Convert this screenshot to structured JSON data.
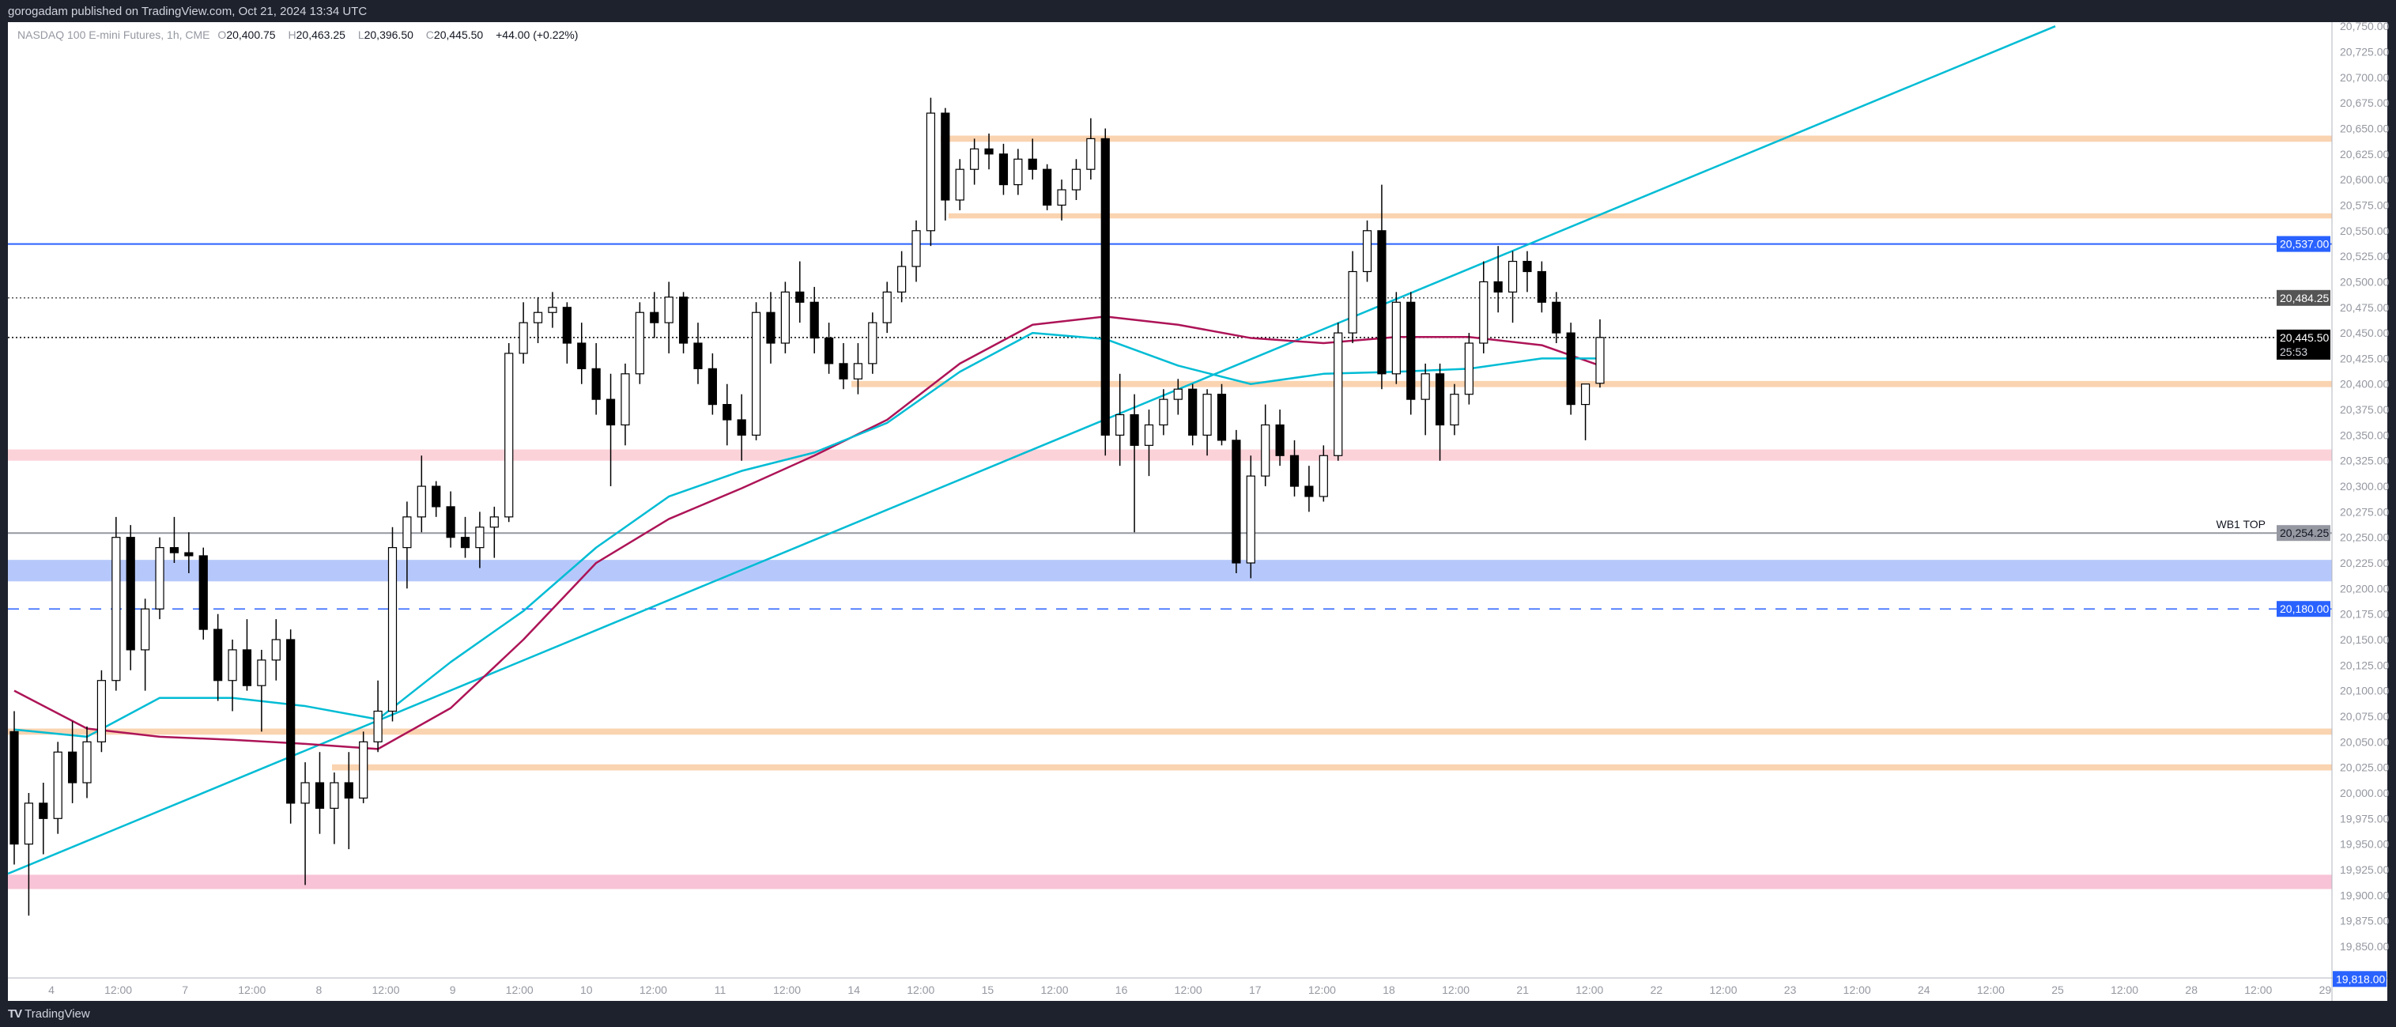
{
  "header": {
    "published": "gorogadam published on TradingView.com, Oct 21, 2024 13:34 UTC"
  },
  "legend": {
    "symbol": "NASDAQ 100 E-mini Futures, 1h, CME",
    "o_label": "O",
    "o": "20,400.75",
    "h_label": "H",
    "h": "20,463.25",
    "l_label": "L",
    "l": "20,396.50",
    "c_label": "C",
    "c": "20,445.50",
    "change": "+44.00 (+0.22%)"
  },
  "footer": {
    "brand": "TradingView",
    "logo_icon": "tradingview-logo-icon"
  },
  "chart_data": {
    "type": "candlestick",
    "ylim": [
      19819,
      20754
    ],
    "grid": false,
    "colors": {
      "up_body": "#ffffff",
      "down_body": "#000000",
      "wick": "#000000",
      "ma_fast": "#00bcd4",
      "ma_slow": "#ad1457",
      "trendline": "#00bcd4"
    },
    "y_ticks": [
      "20,750.00",
      "20,725.00",
      "20,700.00",
      "20,675.00",
      "20,650.00",
      "20,625.00",
      "20,600.00",
      "20,575.00",
      "20,550.00",
      "20,525.00",
      "20,500.00",
      "20,475.00",
      "20,450.00",
      "20,425.00",
      "20,400.00",
      "20,375.00",
      "20,350.00",
      "20,325.00",
      "20,300.00",
      "20,275.00",
      "20,250.00",
      "20,225.00",
      "20,200.00",
      "20,175.00",
      "20,150.00",
      "20,125.00",
      "20,100.00",
      "20,075.00",
      "20,050.00",
      "20,025.00",
      "20,000.00",
      "19,975.00",
      "19,950.00",
      "19,925.00",
      "19,900.00",
      "19,875.00",
      "19,850.00"
    ],
    "x_ticks": [
      "4",
      "12:00",
      "7",
      "12:00",
      "8",
      "12:00",
      "9",
      "12:00",
      "10",
      "12:00",
      "11",
      "12:00",
      "14",
      "12:00",
      "15",
      "12:00",
      "16",
      "12:00",
      "17",
      "12:00",
      "18",
      "12:00",
      "21",
      "12:00",
      "22",
      "12:00",
      "23",
      "12:00",
      "24",
      "12:00",
      "25",
      "12:00",
      "28",
      "12:00",
      "29"
    ],
    "candles": [
      [
        20060,
        20080,
        19930,
        19950
      ],
      [
        19950,
        20000,
        19880,
        19990
      ],
      [
        19990,
        20010,
        19940,
        19975
      ],
      [
        19975,
        20050,
        19960,
        20040
      ],
      [
        20040,
        20070,
        19990,
        20010
      ],
      [
        20010,
        20065,
        19995,
        20050
      ],
      [
        20050,
        20120,
        20040,
        20110
      ],
      [
        20110,
        20270,
        20100,
        20250
      ],
      [
        20250,
        20262,
        20120,
        20140
      ],
      [
        20140,
        20190,
        20100,
        20180
      ],
      [
        20180,
        20250,
        20170,
        20240
      ],
      [
        20240,
        20270,
        20225,
        20235
      ],
      [
        20235,
        20255,
        20215,
        20232
      ],
      [
        20232,
        20240,
        20150,
        20160
      ],
      [
        20160,
        20175,
        20090,
        20110
      ],
      [
        20110,
        20150,
        20080,
        20140
      ],
      [
        20140,
        20170,
        20100,
        20105
      ],
      [
        20105,
        20140,
        20060,
        20130
      ],
      [
        20130,
        20170,
        20110,
        20150
      ],
      [
        20150,
        20160,
        19970,
        19990
      ],
      [
        19990,
        20030,
        19910,
        20010
      ],
      [
        20010,
        20040,
        19960,
        19985
      ],
      [
        19985,
        20020,
        19950,
        20010
      ],
      [
        20010,
        20040,
        19945,
        19995
      ],
      [
        19995,
        20060,
        19990,
        20050
      ],
      [
        20050,
        20110,
        20040,
        20080
      ],
      [
        20080,
        20260,
        20070,
        20240
      ],
      [
        20240,
        20285,
        20200,
        20270
      ],
      [
        20270,
        20330,
        20255,
        20300
      ],
      [
        20300,
        20305,
        20270,
        20280
      ],
      [
        20280,
        20295,
        20240,
        20250
      ],
      [
        20250,
        20270,
        20230,
        20240
      ],
      [
        20240,
        20275,
        20220,
        20260
      ],
      [
        20260,
        20280,
        20230,
        20270
      ],
      [
        20270,
        20440,
        20265,
        20430
      ],
      [
        20430,
        20480,
        20420,
        20460
      ],
      [
        20460,
        20485,
        20440,
        20470
      ],
      [
        20470,
        20490,
        20455,
        20475
      ],
      [
        20475,
        20480,
        20420,
        20440
      ],
      [
        20440,
        20460,
        20400,
        20415
      ],
      [
        20415,
        20440,
        20370,
        20385
      ],
      [
        20385,
        20410,
        20300,
        20360
      ],
      [
        20360,
        20420,
        20340,
        20410
      ],
      [
        20410,
        20480,
        20400,
        20470
      ],
      [
        20470,
        20490,
        20445,
        20460
      ],
      [
        20460,
        20500,
        20430,
        20485
      ],
      [
        20485,
        20490,
        20430,
        20440
      ],
      [
        20440,
        20460,
        20400,
        20415
      ],
      [
        20415,
        20430,
        20370,
        20380
      ],
      [
        20380,
        20400,
        20340,
        20365
      ],
      [
        20365,
        20390,
        20325,
        20350
      ],
      [
        20350,
        20480,
        20345,
        20470
      ],
      [
        20470,
        20490,
        20420,
        20440
      ],
      [
        20440,
        20500,
        20430,
        20490
      ],
      [
        20490,
        20520,
        20460,
        20480
      ],
      [
        20480,
        20495,
        20430,
        20445
      ],
      [
        20445,
        20460,
        20410,
        20420
      ],
      [
        20420,
        20440,
        20395,
        20405
      ],
      [
        20405,
        20440,
        20390,
        20420
      ],
      [
        20420,
        20470,
        20410,
        20460
      ],
      [
        20460,
        20500,
        20450,
        20490
      ],
      [
        20490,
        20530,
        20480,
        20515
      ],
      [
        20515,
        20560,
        20500,
        20550
      ],
      [
        20550,
        20680,
        20535,
        20665
      ],
      [
        20665,
        20670,
        20560,
        20580
      ],
      [
        20580,
        20620,
        20570,
        20610
      ],
      [
        20610,
        20640,
        20595,
        20630
      ],
      [
        20630,
        20645,
        20610,
        20625
      ],
      [
        20625,
        20635,
        20585,
        20595
      ],
      [
        20595,
        20630,
        20585,
        20620
      ],
      [
        20620,
        20640,
        20600,
        20610
      ],
      [
        20610,
        20615,
        20570,
        20575
      ],
      [
        20575,
        20600,
        20560,
        20590
      ],
      [
        20590,
        20620,
        20580,
        20610
      ],
      [
        20610,
        20660,
        20600,
        20640
      ],
      [
        20640,
        20650,
        20330,
        20350
      ],
      [
        20350,
        20410,
        20320,
        20370
      ],
      [
        20370,
        20390,
        20255,
        20340
      ],
      [
        20340,
        20375,
        20310,
        20360
      ],
      [
        20360,
        20395,
        20350,
        20385
      ],
      [
        20385,
        20405,
        20370,
        20395
      ],
      [
        20395,
        20400,
        20340,
        20350
      ],
      [
        20350,
        20395,
        20330,
        20390
      ],
      [
        20390,
        20400,
        20340,
        20345
      ],
      [
        20345,
        20355,
        20215,
        20225
      ],
      [
        20225,
        20330,
        20210,
        20310
      ],
      [
        20310,
        20380,
        20300,
        20360
      ],
      [
        20360,
        20375,
        20320,
        20330
      ],
      [
        20330,
        20345,
        20290,
        20300
      ],
      [
        20300,
        20320,
        20275,
        20290
      ],
      [
        20290,
        20340,
        20285,
        20330
      ],
      [
        20330,
        20460,
        20325,
        20450
      ],
      [
        20450,
        20530,
        20440,
        20510
      ],
      [
        20510,
        20560,
        20500,
        20550
      ],
      [
        20550,
        20595,
        20395,
        20410
      ],
      [
        20410,
        20490,
        20400,
        20480
      ],
      [
        20480,
        20490,
        20370,
        20385
      ],
      [
        20385,
        20420,
        20350,
        20410
      ],
      [
        20410,
        20420,
        20325,
        20360
      ],
      [
        20360,
        20400,
        20350,
        20390
      ],
      [
        20390,
        20450,
        20380,
        20440
      ],
      [
        20440,
        20520,
        20430,
        20500
      ],
      [
        20500,
        20535,
        20470,
        20490
      ],
      [
        20490,
        20530,
        20460,
        20520
      ],
      [
        20520,
        20530,
        20490,
        20510
      ],
      [
        20510,
        20520,
        20470,
        20480
      ],
      [
        20480,
        20490,
        20440,
        20450
      ],
      [
        20450,
        20460,
        20370,
        20380
      ],
      [
        20380,
        20395,
        20345,
        20400
      ],
      [
        20400.75,
        20463.25,
        20396.5,
        20445.5
      ]
    ],
    "ma_fast": [
      20062,
      20055,
      20093,
      20093,
      20085,
      20072,
      20128,
      20178,
      20240,
      20290,
      20315,
      20333,
      20362,
      20412,
      20450,
      20444,
      20418,
      20400,
      20410,
      20412,
      20415,
      20425,
      20425
    ],
    "ma_slow": [
      20100,
      20063,
      20055,
      20052,
      20048,
      20043,
      20083,
      20150,
      20225,
      20268,
      20298,
      20330,
      20365,
      20420,
      20458,
      20466,
      20458,
      20445,
      20440,
      20446,
      20446,
      20438,
      20418
    ],
    "trendline": {
      "start_price": 19921,
      "end_price": 20750
    },
    "levels": [
      {
        "price": 20640,
        "kind": "band",
        "from": 20637,
        "to": 20643,
        "color": "#fad3b0"
      },
      {
        "price": 20565,
        "kind": "band",
        "from": 20562,
        "to": 20567,
        "color": "#fad3b0"
      },
      {
        "price": 20400,
        "kind": "band",
        "from": 20397,
        "to": 20403,
        "color": "#fad3b0"
      },
      {
        "price": 20330,
        "kind": "band",
        "from": 20325,
        "to": 20336,
        "color": "#fcd2d9"
      },
      {
        "price": 20218,
        "kind": "band",
        "from": 20207,
        "to": 20228,
        "color": "#b6c8fb"
      },
      {
        "price": 20060,
        "kind": "band",
        "from": 20057,
        "to": 20063,
        "color": "#fad3b0"
      },
      {
        "price": 20025,
        "kind": "band",
        "from": 20022,
        "to": 20028,
        "color": "#fad3b0"
      },
      {
        "price": 19913,
        "kind": "band",
        "from": 19906,
        "to": 19920,
        "color": "#f8c3d6"
      },
      {
        "price": 20537,
        "kind": "line",
        "color": "#2962ff"
      },
      {
        "price": 20484.25,
        "kind": "dotted",
        "color": "#555555"
      },
      {
        "price": 20445.5,
        "kind": "dotted",
        "color": "#000000"
      },
      {
        "price": 20254.25,
        "kind": "line",
        "color": "#9598a1",
        "label": "WB1 TOP"
      },
      {
        "price": 20180,
        "kind": "dashed",
        "color": "#2962ff"
      }
    ],
    "price_tags": [
      {
        "price": 20537,
        "text": "20,537.00",
        "bg": "#2962ff",
        "fg": "#ffffff"
      },
      {
        "price": 20484.25,
        "text": "20,484.25",
        "bg": "#555555",
        "fg": "#ffffff"
      },
      {
        "price": 20445.5,
        "text": "20,445.50",
        "sub": "25:53",
        "bg": "#000000",
        "fg": "#ffffff"
      },
      {
        "price": 20254.25,
        "text": "20,254.25",
        "bg": "#9598a1",
        "fg": "#131722"
      },
      {
        "price": 20180,
        "text": "20,180.00",
        "bg": "#2962ff",
        "fg": "#ffffff"
      },
      {
        "price": 19818,
        "text": "19,818.00",
        "bg": "#2962ff",
        "fg": "#ffffff"
      }
    ]
  }
}
